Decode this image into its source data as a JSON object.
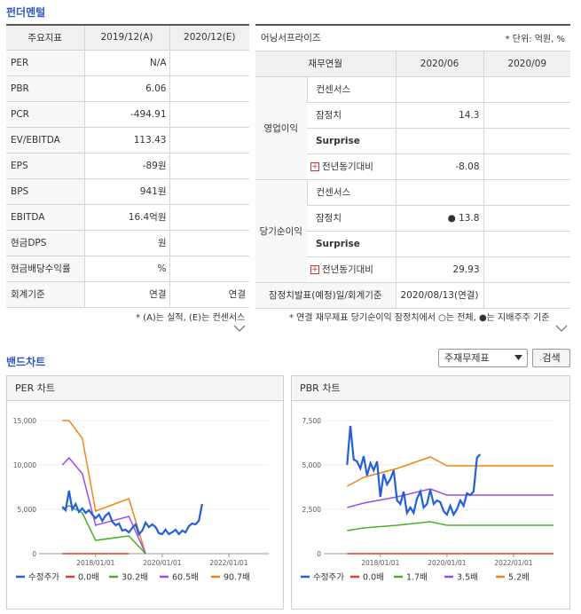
{
  "fundamentals": {
    "title": "펀더멘털",
    "header": [
      "주요지표",
      "2019/12(A)",
      "2020/12(E)"
    ],
    "rows": [
      {
        "label": "PER",
        "a": "N/A",
        "e": ""
      },
      {
        "label": "PBR",
        "a": "6.06",
        "e": ""
      },
      {
        "label": "PCR",
        "a": "-494.91",
        "e": ""
      },
      {
        "label": "EV/EBITDA",
        "a": "113.43",
        "e": ""
      },
      {
        "label": "EPS",
        "a": "-89원",
        "e": ""
      },
      {
        "label": "BPS",
        "a": "941원",
        "e": ""
      },
      {
        "label": "EBITDA",
        "a": "16.4억원",
        "e": ""
      },
      {
        "label": "현금DPS",
        "a": "원",
        "e": ""
      },
      {
        "label": "현금배당수익률",
        "a": "%",
        "e": ""
      },
      {
        "label": "회계기준",
        "a": "연결",
        "e": "연결"
      }
    ],
    "note": "* (A)는 실적, (E)는 컨센서스"
  },
  "earnings": {
    "title": "어닝서프라이즈",
    "unit": "* 단위: 억원, %",
    "header": [
      "재무연월",
      "2020/06",
      "2020/09"
    ],
    "op_label": "영업이익",
    "net_label": "당기순이익",
    "op_rows": [
      {
        "label": "컨센서스",
        "v1": "",
        "v2": ""
      },
      {
        "label": "잠정치",
        "v1": "14.3",
        "v2": ""
      },
      {
        "label": "Surprise",
        "v1": "",
        "v2": ""
      },
      {
        "label": "전년동기대비",
        "v1": "-8.08",
        "v2": ""
      }
    ],
    "net_rows": [
      {
        "label": "컨센서스",
        "v1": "",
        "v2": ""
      },
      {
        "label": "잠정치",
        "v1": "● 13.8",
        "v2": ""
      },
      {
        "label": "Surprise",
        "v1": "",
        "v2": ""
      },
      {
        "label": "전년동기대비",
        "v1": "29.93",
        "v2": ""
      }
    ],
    "footer_label": "잠정치발표(예정)일/회계기준",
    "footer_value": "2020/08/13(연결)",
    "note": "* 연결 재무제표 당기순이익 잠정치에서 ○는 전체, ●는 지배주주 기준"
  },
  "band": {
    "title": "밴드차트",
    "select_value": "주재무제표",
    "button_label": "검색"
  },
  "chart_data": [
    {
      "type": "line",
      "title": "PER 차트",
      "x_ticks": [
        "2018/01/01",
        "2020/01/01",
        "2022/01/01"
      ],
      "y_ticks": [
        "15,000",
        "10,000",
        "5,000",
        "0"
      ],
      "ylim": [
        0,
        15000
      ],
      "colors": {
        "price": "#1f5fe0",
        "b0": "#e53b2c",
        "b1": "#4caf20",
        "b2": "#9a4cf0",
        "b3": "#f0870c"
      },
      "legend": [
        "수정주가",
        "0.0배",
        "30.2배",
        "60.5배",
        "90.7배"
      ],
      "series": [
        {
          "name": "수정주가",
          "x": [
            2017.0,
            2017.1,
            2017.2,
            2017.3,
            2017.4,
            2017.5,
            2017.6,
            2017.7,
            2017.8,
            2017.9,
            2018.0,
            2018.1,
            2018.2,
            2018.3,
            2018.4,
            2018.5,
            2018.6,
            2018.7,
            2018.8,
            2018.9,
            2019.0,
            2019.1,
            2019.2,
            2019.3,
            2019.4,
            2019.5,
            2019.6,
            2019.7,
            2019.8,
            2019.9,
            2020.0,
            2020.1,
            2020.2,
            2020.3,
            2020.4,
            2020.5,
            2020.6,
            2020.7,
            2020.8,
            2020.9,
            2021.0,
            2021.1,
            2021.2
          ],
          "values": [
            5300,
            4900,
            7100,
            5000,
            5600,
            4700,
            5100,
            4600,
            4900,
            4400,
            4000,
            4400,
            3700,
            4300,
            4600,
            3600,
            3200,
            3400,
            2600,
            2700,
            2400,
            2900,
            3300,
            2200,
            2600,
            3500,
            3000,
            3300,
            3000,
            2300,
            2200,
            2700,
            2200,
            2400,
            2700,
            2200,
            2600,
            2400,
            3100,
            3400,
            3300,
            3700,
            5600
          ]
        },
        {
          "name": "0.0배",
          "x": [
            2017.0,
            2019.0
          ],
          "values": [
            0,
            0
          ]
        },
        {
          "name": "30.2배",
          "x": [
            2017.0,
            2017.2,
            2017.6,
            2018.0,
            2019.0,
            2019.5
          ],
          "values": [
            5000,
            5400,
            4600,
            1500,
            2000,
            0
          ]
        },
        {
          "name": "60.5배",
          "x": [
            2017.0,
            2017.2,
            2017.6,
            2018.0,
            2019.0,
            2019.5
          ],
          "values": [
            10000,
            10800,
            9000,
            3200,
            4200,
            0
          ]
        },
        {
          "name": "90.7배",
          "x": [
            2017.0,
            2017.2,
            2017.6,
            2018.0,
            2019.0,
            2019.5
          ],
          "values": [
            15000,
            15000,
            13000,
            4800,
            6200,
            0
          ]
        }
      ]
    },
    {
      "type": "line",
      "title": "PBR 차트",
      "x_ticks": [
        "2018/01/01",
        "2020/01/01",
        "2022/01/01"
      ],
      "y_ticks": [
        "7,500",
        "5,000",
        "2,500",
        "0"
      ],
      "ylim": [
        0,
        7500
      ],
      "colors": {
        "price": "#1f5fe0",
        "b0": "#e53b2c",
        "b1": "#4caf20",
        "b2": "#9a4cf0",
        "b3": "#f0870c"
      },
      "legend": [
        "수정주가",
        "0.0배",
        "1.7배",
        "3.5배",
        "5.2배"
      ],
      "series": [
        {
          "name": "수정주가",
          "x": [
            2017.0,
            2017.1,
            2017.2,
            2017.3,
            2017.4,
            2017.5,
            2017.6,
            2017.7,
            2017.8,
            2017.9,
            2018.0,
            2018.1,
            2018.2,
            2018.3,
            2018.4,
            2018.5,
            2018.6,
            2018.7,
            2018.8,
            2018.9,
            2019.0,
            2019.1,
            2019.2,
            2019.3,
            2019.4,
            2019.5,
            2019.6,
            2019.7,
            2019.8,
            2019.9,
            2020.0,
            2020.1,
            2020.2,
            2020.3,
            2020.4,
            2020.5,
            2020.6,
            2020.7,
            2020.8,
            2020.9,
            2021.0
          ],
          "values": [
            5000,
            7200,
            5300,
            5200,
            4800,
            5500,
            4400,
            5100,
            4700,
            5200,
            3200,
            4500,
            3900,
            4200,
            4700,
            3000,
            2800,
            3500,
            2300,
            2600,
            2300,
            3100,
            3500,
            2600,
            2800,
            3600,
            2800,
            3000,
            2900,
            2400,
            2200,
            2700,
            2200,
            2500,
            3000,
            2700,
            3400,
            3300,
            3500,
            5400,
            5600
          ]
        },
        {
          "name": "0.0배",
          "x": [
            2017.0,
            2023.2
          ],
          "values": [
            0,
            0
          ]
        },
        {
          "name": "1.7배",
          "x": [
            2017.0,
            2017.5,
            2018.5,
            2019.5,
            2020.0,
            2023.2
          ],
          "values": [
            1300,
            1450,
            1600,
            1800,
            1600,
            1600
          ]
        },
        {
          "name": "3.5배",
          "x": [
            2017.0,
            2017.5,
            2018.5,
            2019.5,
            2020.0,
            2023.2
          ],
          "values": [
            2600,
            2850,
            3200,
            3650,
            3300,
            3300
          ]
        },
        {
          "name": "5.2배",
          "x": [
            2017.0,
            2017.5,
            2018.5,
            2019.5,
            2020.0,
            2023.2
          ],
          "values": [
            3800,
            4300,
            4800,
            5450,
            4950,
            4950
          ]
        }
      ]
    }
  ]
}
